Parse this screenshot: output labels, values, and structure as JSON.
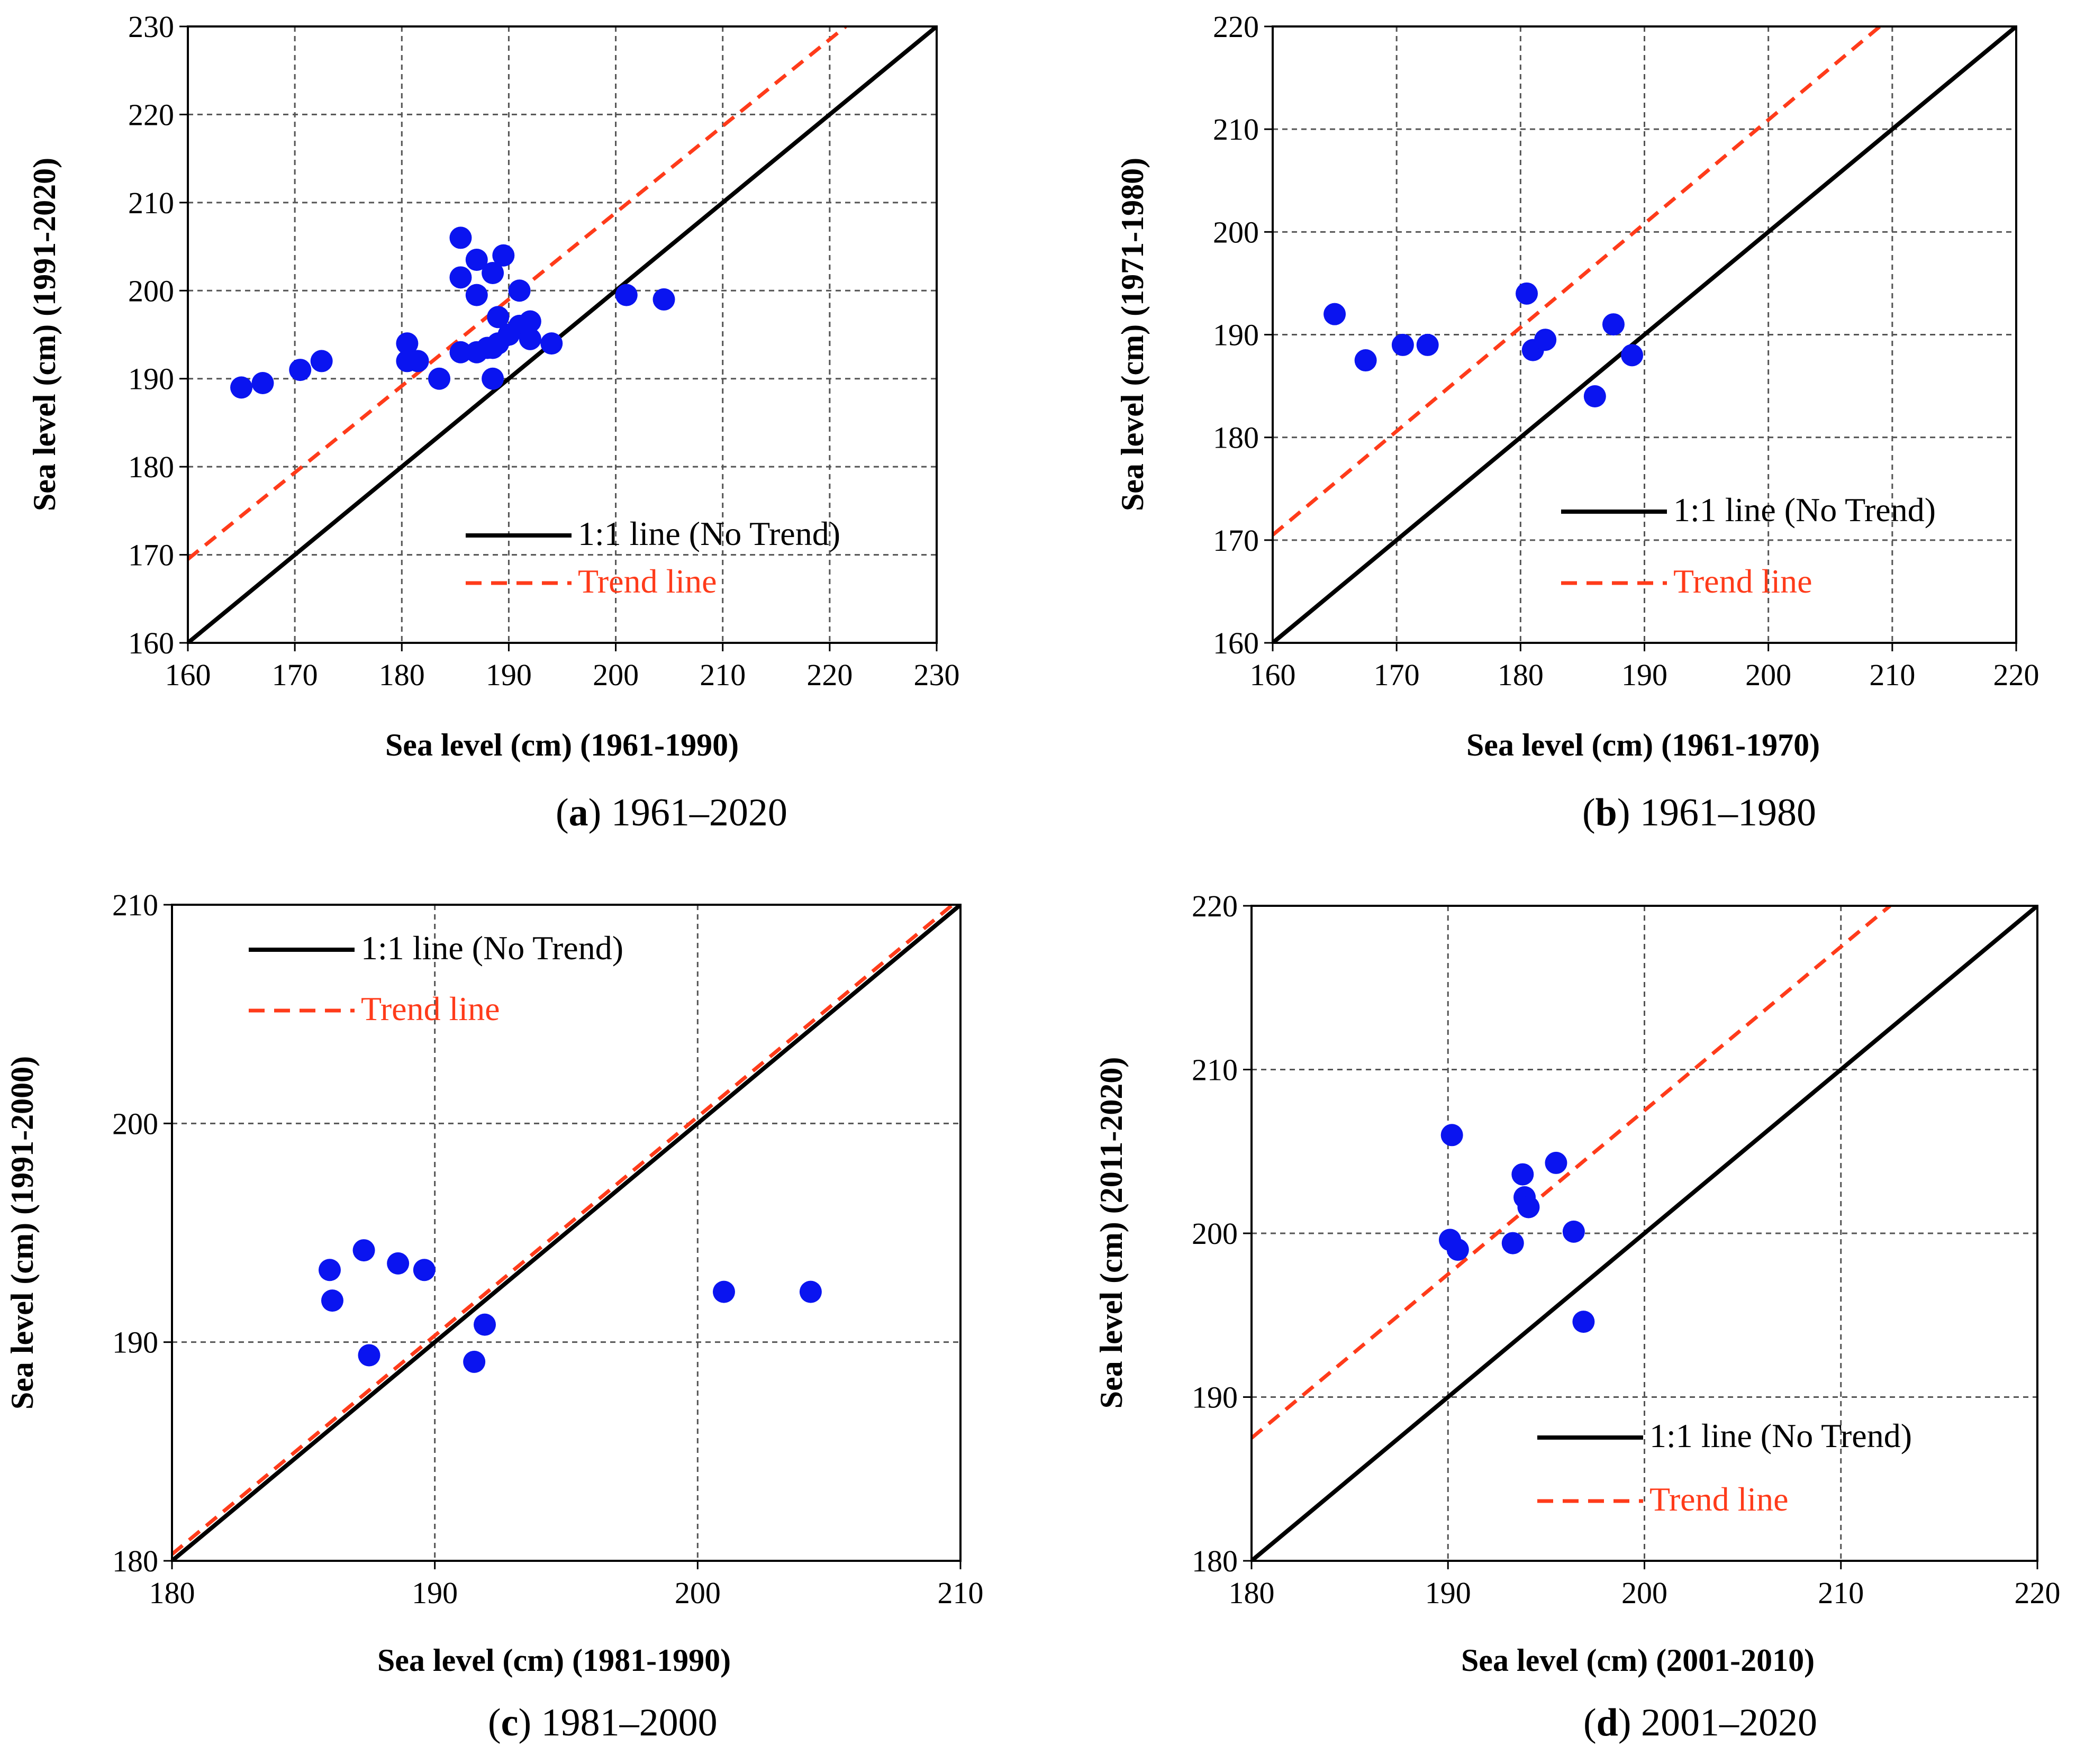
{
  "figure": {
    "legend_labels": {
      "one_to_one": "1:1 line (No Trend)",
      "trend": "Trend line"
    },
    "colors": {
      "points": "#0a14f0",
      "one_to_one": "#000000",
      "trend": "#ff3b1a",
      "grid": "#555555"
    }
  },
  "chart_data": [
    {
      "id": "a",
      "type": "scatter",
      "caption_letter": "a",
      "caption_rest": " 1961–2020",
      "xlabel": "Sea level (cm) (1961-1990)",
      "ylabel": "Sea level (cm) (1991-2020)",
      "xlim": [
        160,
        230
      ],
      "ylim": [
        160,
        230
      ],
      "xticks": [
        160,
        170,
        180,
        190,
        200,
        210,
        220,
        230
      ],
      "yticks": [
        160,
        170,
        180,
        190,
        200,
        210,
        220,
        230
      ],
      "tick_labels_x": [
        "160",
        "170",
        "180",
        "190",
        "200",
        "210",
        "220",
        "230"
      ],
      "tick_labels_y": [
        "160",
        "170",
        "180",
        "190",
        "200",
        "210",
        "220",
        "230"
      ],
      "trend_line": [
        [
          160,
          169.5
        ],
        [
          221.5,
          230
        ]
      ],
      "legend_position": "bottom-right",
      "points": [
        [
          165,
          189
        ],
        [
          167,
          189.5
        ],
        [
          170.5,
          191
        ],
        [
          172.5,
          192
        ],
        [
          180.5,
          194
        ],
        [
          180.5,
          192
        ],
        [
          181.5,
          192
        ],
        [
          183.5,
          190
        ],
        [
          185.5,
          206
        ],
        [
          185.5,
          201.5
        ],
        [
          185.5,
          193
        ],
        [
          187,
          203.5
        ],
        [
          187,
          199.5
        ],
        [
          187,
          193
        ],
        [
          188,
          193.5
        ],
        [
          188.5,
          202
        ],
        [
          188.5,
          190
        ],
        [
          188.5,
          193.5
        ],
        [
          189,
          197
        ],
        [
          189,
          194
        ],
        [
          189.5,
          204
        ],
        [
          190,
          195
        ],
        [
          191,
          200
        ],
        [
          191,
          196
        ],
        [
          192,
          196.5
        ],
        [
          192,
          194.5
        ],
        [
          194,
          194
        ],
        [
          201,
          199.5
        ],
        [
          204.5,
          199
        ]
      ]
    },
    {
      "id": "b",
      "type": "scatter",
      "caption_letter": "b",
      "caption_rest": " 1961–1980",
      "xlabel": "Sea level (cm) (1961-1970)",
      "ylabel": "Sea level (cm) (1971-1980)",
      "xlim": [
        160,
        220
      ],
      "ylim": [
        160,
        220
      ],
      "xticks": [
        160,
        170,
        180,
        190,
        200,
        210,
        220
      ],
      "yticks": [
        160,
        170,
        180,
        190,
        200,
        210,
        220
      ],
      "tick_labels_x": [
        "160",
        "170",
        "180",
        "190",
        "200",
        "210",
        "220"
      ],
      "tick_labels_y": [
        "160",
        "170",
        "180",
        "190",
        "200",
        "210",
        "220"
      ],
      "trend_line": [
        [
          160,
          170.5
        ],
        [
          209,
          220
        ]
      ],
      "legend_position": "top-right",
      "points": [
        [
          165,
          192
        ],
        [
          167.5,
          187.5
        ],
        [
          170.5,
          189
        ],
        [
          172.5,
          189
        ],
        [
          180.5,
          194
        ],
        [
          181,
          188.5
        ],
        [
          182,
          189.5
        ],
        [
          186,
          184
        ],
        [
          187.5,
          191
        ],
        [
          189,
          188
        ]
      ]
    },
    {
      "id": "c",
      "type": "scatter",
      "caption_letter": "c",
      "caption_rest": " 1981–2000",
      "xlabel": "Sea level (cm) (1981-1990)",
      "ylabel": "Sea level (cm) (1991-2000)",
      "xlim": [
        180,
        210
      ],
      "ylim": [
        180,
        210
      ],
      "xticks": [
        180,
        190,
        200,
        210
      ],
      "yticks": [
        180,
        190,
        200,
        210
      ],
      "tick_labels_x": [
        "180",
        "190",
        "200",
        "210"
      ],
      "tick_labels_y": [
        "180",
        "190",
        "200",
        "210"
      ],
      "trend_line": [
        [
          180,
          180.3
        ],
        [
          210,
          210.3
        ]
      ],
      "legend_position": "top-left",
      "points": [
        [
          186,
          193.3
        ],
        [
          186.1,
          191.9
        ],
        [
          187.3,
          194.2
        ],
        [
          187.5,
          189.4
        ],
        [
          188.6,
          193.6
        ],
        [
          189.6,
          193.3
        ],
        [
          191.5,
          189.1
        ],
        [
          191.9,
          190.8
        ],
        [
          201,
          192.3
        ],
        [
          204.3,
          192.3
        ]
      ]
    },
    {
      "id": "d",
      "type": "scatter",
      "caption_letter": "d",
      "caption_rest": " 2001–2020",
      "xlabel": "Sea level (cm) (2001-2010)",
      "ylabel": "Sea level (cm) (2011-2020)",
      "xlim": [
        180,
        220
      ],
      "ylim": [
        180,
        220
      ],
      "xticks": [
        180,
        190,
        200,
        210,
        220
      ],
      "yticks": [
        180,
        190,
        200,
        210,
        220
      ],
      "tick_labels_x": [
        "180",
        "190",
        "200",
        "210",
        "220"
      ],
      "tick_labels_y": [
        "180",
        "190",
        "200",
        "210",
        "220"
      ],
      "trend_line": [
        [
          180,
          187.5
        ],
        [
          212.5,
          220
        ]
      ],
      "legend_position": "bottom-right",
      "points": [
        [
          190.2,
          206
        ],
        [
          190.1,
          199.6
        ],
        [
          190.5,
          199
        ],
        [
          193.3,
          199.4
        ],
        [
          193.8,
          203.6
        ],
        [
          193.9,
          202.2
        ],
        [
          194.1,
          201.6
        ],
        [
          195.5,
          204.3
        ],
        [
          196.4,
          200.1
        ],
        [
          196.9,
          194.6
        ]
      ]
    }
  ]
}
